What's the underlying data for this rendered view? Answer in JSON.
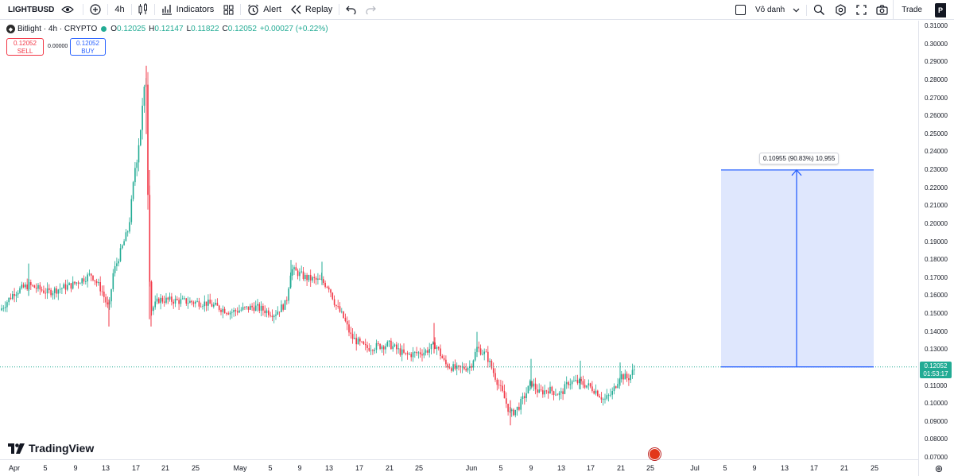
{
  "toolbar": {
    "symbol": "LIGHTBUSD",
    "interval": "4h",
    "indicators_label": "Indicators",
    "alert_label": "Alert",
    "replay_label": "Replay",
    "layout_name": "Vô danh",
    "trade_label": "Trade",
    "profile_initial": "P"
  },
  "legend": {
    "title": "Bitlight · 4h · CRYPTO",
    "open_label": "O",
    "open": "0.12025",
    "high_label": "H",
    "high": "0.12147",
    "low_label": "L",
    "low": "0.11822",
    "close_label": "C",
    "close": "0.12052",
    "change": "+0.00027 (+0.22%)"
  },
  "order": {
    "sell_price": "0.12052",
    "sell_label": "SELL",
    "spread": "0.00000",
    "buy_price": "0.12052",
    "buy_label": "BUY"
  },
  "brand": "TradingView",
  "price_scale": {
    "ticks": [
      "0.31000",
      "0.30000",
      "0.29000",
      "0.28000",
      "0.27000",
      "0.26000",
      "0.25000",
      "0.24000",
      "0.23000",
      "0.22000",
      "0.21000",
      "0.20000",
      "0.19000",
      "0.18000",
      "0.17000",
      "0.16000",
      "0.15000",
      "0.14000",
      "0.13000",
      "0.12000",
      "0.11000",
      "0.10000",
      "0.09000",
      "0.08000",
      "0.07000"
    ],
    "current_price": "0.12052",
    "countdown": "01:53:17"
  },
  "time_scale": {
    "ticks": [
      "Apr",
      "5",
      "9",
      "13",
      "17",
      "21",
      "25",
      "May",
      "5",
      "9",
      "13",
      "17",
      "21",
      "25",
      "Jun",
      "5",
      "9",
      "13",
      "17",
      "21",
      "25",
      "Jul",
      "5",
      "9",
      "13",
      "17",
      "21",
      "25"
    ]
  },
  "measure": {
    "label": "0.10955 (90.83%) 10,955"
  },
  "colors": {
    "up": "#22ab94",
    "down": "#f23645",
    "measure_fill": "#dbe4fd",
    "measure_line": "#2962ff",
    "accent": "#2962ff"
  },
  "chart_data": {
    "type": "candlestick",
    "symbol": "LIGHTBUSD",
    "interval": "4h",
    "ylim": [
      0.07,
      0.31
    ],
    "x_range": [
      "Apr 1",
      "Jun 23"
    ],
    "x": [
      "Apr 1",
      "Apr 5",
      "Apr 9",
      "Apr 13",
      "Apr 17",
      "Apr 18",
      "Apr 19",
      "Apr 21",
      "Apr 25",
      "May 1",
      "May 5",
      "May 8",
      "May 12",
      "May 15",
      "May 17",
      "May 21",
      "May 25",
      "May 27",
      "Jun 1",
      "Jun 5",
      "Jun 7",
      "Jun 9",
      "Jun 13",
      "Jun 17",
      "Jun 21",
      "Jun 23"
    ],
    "close": [
      0.152,
      0.165,
      0.164,
      0.172,
      0.25,
      0.282,
      0.165,
      0.162,
      0.158,
      0.152,
      0.148,
      0.178,
      0.168,
      0.138,
      0.132,
      0.128,
      0.126,
      0.138,
      0.12,
      0.106,
      0.095,
      0.108,
      0.112,
      0.105,
      0.112,
      0.1205
    ],
    "last_close": 0.12052,
    "last_change": 0.00027,
    "last_change_pct": 0.22,
    "measure": {
      "from": 0.12052,
      "to": 0.23007,
      "change": 0.10955,
      "change_pct": 90.83,
      "ticks": 10955
    }
  }
}
